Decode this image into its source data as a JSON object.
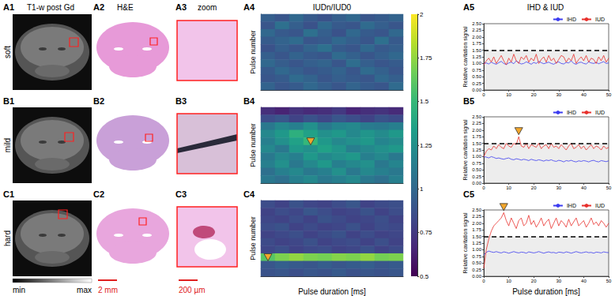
{
  "figure": {
    "column_titles": [
      "T1-w post Gd",
      "H&E",
      "zoom",
      "IUDn/IUD0",
      "IHD & IUD"
    ],
    "panel_labels": [
      [
        "A1",
        "A2",
        "A3",
        "A4",
        "A5"
      ],
      [
        "B1",
        "B2",
        "B3",
        "B4",
        "B5"
      ],
      [
        "C1",
        "C2",
        "C3",
        "C4",
        "C5"
      ]
    ],
    "row_labels": [
      "soft",
      "mild",
      "hard"
    ],
    "intensity_scale": {
      "min_label": "min",
      "max_label": "max"
    },
    "scale_bars": [
      "2 mm",
      "200 µm"
    ]
  },
  "chart_data": [
    {
      "type": "heatmap",
      "x_label": "Pulse duration [ms]",
      "y_label": "Pulse number",
      "tick_labels": false,
      "x": [
        2.5,
        7.5,
        12.5,
        17.5,
        22.5,
        27.5,
        32.5,
        37.5,
        42.5,
        47.5
      ],
      "pulses": [
        3,
        9,
        15,
        21,
        27,
        33,
        39,
        45,
        51,
        57
      ],
      "color_range": [
        0.5,
        2
      ],
      "color_ticks": [
        0.5,
        0.75,
        1,
        1.25,
        1.5,
        1.75,
        2
      ],
      "panels": [
        {
          "cells": [
            [
              0.95,
              0.9,
              1.0,
              0.92,
              0.88,
              0.95,
              1.0,
              0.9,
              0.93,
              0.97
            ],
            [
              0.9,
              1.05,
              0.95,
              0.88,
              1.0,
              0.92,
              0.9,
              1.02,
              0.95,
              0.9
            ],
            [
              1.0,
              0.92,
              0.9,
              1.05,
              0.95,
              0.88,
              1.0,
              0.93,
              0.9,
              1.0
            ],
            [
              0.93,
              0.97,
              1.02,
              0.9,
              0.92,
              1.0,
              0.95,
              0.9,
              1.05,
              0.92
            ],
            [
              0.88,
              0.95,
              0.9,
              0.98,
              1.05,
              0.93,
              0.9,
              1.0,
              0.92,
              0.95
            ],
            [
              0.95,
              0.9,
              0.97,
              0.92,
              0.9,
              1.02,
              0.96,
              0.9,
              0.95,
              1.0
            ],
            [
              1.0,
              0.94,
              0.9,
              0.95,
              0.98,
              0.9,
              1.03,
              0.95,
              0.9,
              0.93
            ],
            [
              0.92,
              1.0,
              0.95,
              0.9,
              0.93,
              0.97,
              0.9,
              1.02,
              0.96,
              0.9
            ],
            [
              0.9,
              0.93,
              1.02,
              0.97,
              0.9,
              0.95,
              0.92,
              0.9,
              1.0,
              0.95
            ],
            [
              0.97,
              0.9,
              0.93,
              1.0,
              0.95,
              0.9,
              0.98,
              0.93,
              0.9,
              1.02
            ]
          ]
        },
        {
          "cells": [
            [
              0.7,
              0.65,
              0.72,
              0.68,
              0.7,
              0.75,
              0.66,
              0.7,
              0.72,
              0.68
            ],
            [
              0.85,
              0.9,
              0.8,
              0.88,
              0.82,
              0.9,
              0.85,
              0.8,
              0.88,
              0.84
            ],
            [
              1.1,
              1.2,
              1.15,
              1.25,
              1.1,
              1.18,
              1.2,
              1.12,
              1.1,
              1.15
            ],
            [
              1.2,
              1.3,
              1.45,
              1.35,
              1.25,
              1.3,
              1.2,
              1.28,
              1.22,
              1.3
            ],
            [
              1.15,
              1.25,
              1.35,
              1.5,
              1.3,
              1.2,
              1.25,
              1.3,
              1.18,
              1.22
            ],
            [
              1.2,
              1.1,
              1.3,
              1.25,
              1.35,
              1.28,
              1.15,
              1.2,
              1.25,
              1.3
            ],
            [
              1.1,
              1.2,
              1.15,
              1.3,
              1.2,
              1.25,
              1.3,
              1.15,
              1.2,
              1.1
            ],
            [
              1.15,
              1.25,
              1.1,
              1.2,
              1.3,
              1.15,
              1.2,
              1.25,
              1.1,
              1.18
            ],
            [
              1.05,
              1.15,
              1.2,
              1.1,
              1.15,
              1.25,
              1.1,
              1.2,
              1.15,
              1.1
            ],
            [
              1.1,
              1.05,
              1.15,
              1.2,
              1.1,
              1.15,
              1.2,
              1.1,
              1.05,
              1.15
            ]
          ],
          "annotation": {
            "x": 17.5,
            "pulse": 27
          }
        },
        {
          "cells": [
            [
              0.85,
              0.8,
              0.88,
              0.82,
              0.8,
              0.85,
              0.9,
              0.8,
              0.84,
              0.86
            ],
            [
              0.8,
              0.85,
              0.82,
              0.9,
              0.85,
              0.8,
              0.82,
              0.88,
              0.8,
              0.85
            ],
            [
              0.82,
              0.8,
              0.85,
              0.8,
              0.88,
              0.84,
              0.8,
              0.82,
              0.86,
              0.8
            ],
            [
              0.85,
              0.88,
              0.8,
              0.84,
              0.8,
              0.82,
              0.87,
              0.8,
              0.85,
              0.83
            ],
            [
              0.8,
              0.83,
              0.86,
              0.8,
              0.84,
              0.88,
              0.8,
              0.85,
              0.8,
              0.82
            ],
            [
              0.84,
              0.8,
              0.82,
              0.87,
              0.8,
              0.83,
              0.85,
              0.8,
              0.86,
              0.8
            ],
            [
              0.82,
              0.86,
              0.8,
              0.83,
              0.85,
              0.8,
              0.82,
              0.87,
              0.8,
              0.84
            ],
            [
              1.6,
              1.7,
              1.75,
              1.7,
              1.68,
              1.72,
              1.7,
              1.75,
              1.68,
              1.7
            ],
            [
              0.9,
              0.95,
              0.92,
              0.9,
              0.94,
              0.9,
              0.93,
              0.95,
              0.9,
              0.92
            ],
            [
              0.88,
              0.9,
              0.86,
              0.9,
              0.88,
              0.92,
              0.87,
              0.9,
              0.88,
              0.9
            ]
          ],
          "annotation": {
            "x": 2.5,
            "pulse": 45
          }
        }
      ]
    },
    {
      "type": "line",
      "x_label": "Pulse duration [ms]",
      "y_label": "Relative cavitation signal",
      "legend": "top-right",
      "grid": false,
      "xlim": [
        0,
        50
      ],
      "xticks": [
        0,
        10,
        20,
        30,
        40,
        50
      ],
      "ylim": [
        0,
        2.5
      ],
      "yticks": [
        {
          "value": 0,
          "label": "0.00"
        },
        {
          "value": 0.25,
          "label": "0.25"
        },
        {
          "value": 0.5,
          "label": "0.50"
        },
        {
          "value": 0.75,
          "label": "0.75"
        },
        {
          "value": 1,
          "label": "1.00"
        },
        {
          "value": 1.25,
          "label": "1.25"
        },
        {
          "value": 1.5,
          "label": "1.50"
        },
        {
          "value": 1.75,
          "label": "1.75"
        },
        {
          "value": 2,
          "label": "2.00"
        },
        {
          "value": 2.25,
          "label": "2.25"
        },
        {
          "value": 2.5,
          "label": "2.50"
        }
      ],
      "threshold": 1.5,
      "x": [
        0,
        1,
        2,
        3,
        4,
        5,
        6,
        7,
        8,
        9,
        10,
        11,
        12,
        13,
        14,
        15,
        16,
        17,
        18,
        19,
        20,
        21,
        22,
        23,
        24,
        25,
        26,
        27,
        28,
        29,
        30,
        31,
        32,
        33,
        34,
        35,
        36,
        37,
        38,
        39,
        40,
        41,
        42,
        43,
        44,
        45,
        46,
        47,
        48,
        49,
        50
      ],
      "panels": [
        {
          "series": [
            {
              "name": "IHD",
              "color": "#3c3cf0",
              "values": [
                1.0,
                1.02,
                0.98,
                1.05,
                1.0,
                0.97,
                1.03,
                1.08,
                1.0,
                0.96,
                1.02,
                1.05,
                0.99,
                1.1,
                1.03,
                0.98,
                1.0,
                1.06,
                1.02,
                0.97,
                1.04,
                1.0,
                1.08,
                1.03,
                0.99,
                1.02,
                1.05,
                1.0,
                0.97,
                1.03,
                1.06,
                1.0,
                0.98,
                1.04,
                1.02,
                1.1,
                1.0,
                0.97,
                1.03,
                1.05,
                1.0,
                0.98,
                1.06,
                1.02,
                1.0,
                1.04,
                0.99,
                1.03,
                1.07,
                1.0,
                1.02
              ]
            },
            {
              "name": "IUD",
              "color": "#e8302c",
              "values": [
                0.95,
                1.1,
                1.2,
                1.05,
                1.25,
                1.0,
                1.15,
                1.3,
                1.1,
                0.95,
                1.2,
                1.05,
                1.35,
                1.1,
                1.0,
                1.25,
                1.15,
                1.3,
                1.05,
                1.2,
                1.1,
                1.35,
                1.0,
                1.15,
                1.25,
                1.05,
                1.3,
                1.1,
                1.2,
                1.0,
                1.15,
                1.3,
                1.25,
                1.05,
                1.2,
                1.1,
                1.35,
                1.0,
                1.15,
                1.25,
                1.1,
                1.3,
                1.05,
                1.2,
                1.15,
                1.0,
                1.25,
                1.1,
                1.3,
                1.05,
                1.2
              ]
            }
          ]
        },
        {
          "series": [
            {
              "name": "IHD",
              "color": "#3c3cf0",
              "values": [
                1.0,
                0.98,
                0.95,
                1.0,
                0.97,
                0.93,
                0.95,
                0.92,
                0.9,
                0.93,
                0.95,
                0.9,
                0.88,
                0.92,
                0.9,
                0.87,
                0.9,
                0.88,
                0.85,
                0.9,
                0.87,
                0.85,
                0.88,
                0.86,
                0.83,
                0.87,
                0.85,
                0.88,
                0.84,
                0.82,
                0.86,
                0.84,
                0.8,
                0.85,
                0.83,
                0.86,
                0.82,
                0.8,
                0.84,
                0.82,
                0.85,
                0.83,
                0.8,
                0.84,
                0.86,
                0.82,
                0.8,
                0.85,
                0.83,
                0.81,
                0.84
              ]
            },
            {
              "name": "IUD",
              "color": "#e8302c",
              "annotation_x": 14,
              "values": [
                1.0,
                1.2,
                1.3,
                1.25,
                1.4,
                1.3,
                1.45,
                1.35,
                1.3,
                1.5,
                1.4,
                1.35,
                1.5,
                1.45,
                1.75,
                1.4,
                1.35,
                1.5,
                1.3,
                1.45,
                1.4,
                1.35,
                1.5,
                1.3,
                1.4,
                1.45,
                1.3,
                1.5,
                1.35,
                1.4,
                1.3,
                1.45,
                1.35,
                1.25,
                1.4,
                1.5,
                1.3,
                1.35,
                1.45,
                1.3,
                1.4,
                1.25,
                1.35,
                1.45,
                1.3,
                1.4,
                1.35,
                1.25,
                1.4,
                1.3,
                1.35
              ]
            }
          ]
        },
        {
          "series": [
            {
              "name": "IHD",
              "color": "#3c3cf0",
              "values": [
                0.8,
                0.9,
                0.95,
                0.92,
                0.9,
                0.93,
                0.9,
                0.88,
                0.92,
                0.9,
                0.87,
                0.9,
                0.93,
                0.9,
                0.88,
                0.91,
                0.9,
                0.87,
                0.92,
                0.9,
                0.88,
                0.9,
                0.93,
                0.9,
                0.87,
                0.9,
                0.92,
                0.89,
                0.9,
                0.87,
                0.91,
                0.9,
                0.88,
                0.92,
                0.9,
                0.87,
                0.9,
                0.93,
                0.9,
                0.88,
                0.9,
                0.92,
                0.89,
                0.9,
                0.87,
                0.91,
                0.9,
                0.88,
                0.92,
                0.9,
                0.89
              ]
            },
            {
              "name": "IUD",
              "color": "#e8302c",
              "annotation_x": 8,
              "values": [
                0.3,
                1.0,
                1.4,
                1.7,
                1.9,
                2.0,
                2.1,
                2.2,
                2.4,
                2.1,
                1.9,
                2.2,
                2.0,
                1.8,
                2.1,
                2.2,
                1.9,
                2.0,
                2.3,
                1.95,
                2.1,
                1.85,
                2.0,
                2.2,
                1.9,
                2.05,
                2.15,
                1.8,
                2.0,
                2.2,
                1.9,
                2.1,
                2.0,
                1.85,
                2.15,
                1.9,
                2.05,
                2.2,
                1.9,
                2.0,
                2.1,
                1.85,
                2.0,
                2.2,
                1.95,
                2.05,
                1.9,
                2.1,
                2.0,
                1.85,
                2.0
              ]
            }
          ]
        }
      ]
    }
  ]
}
